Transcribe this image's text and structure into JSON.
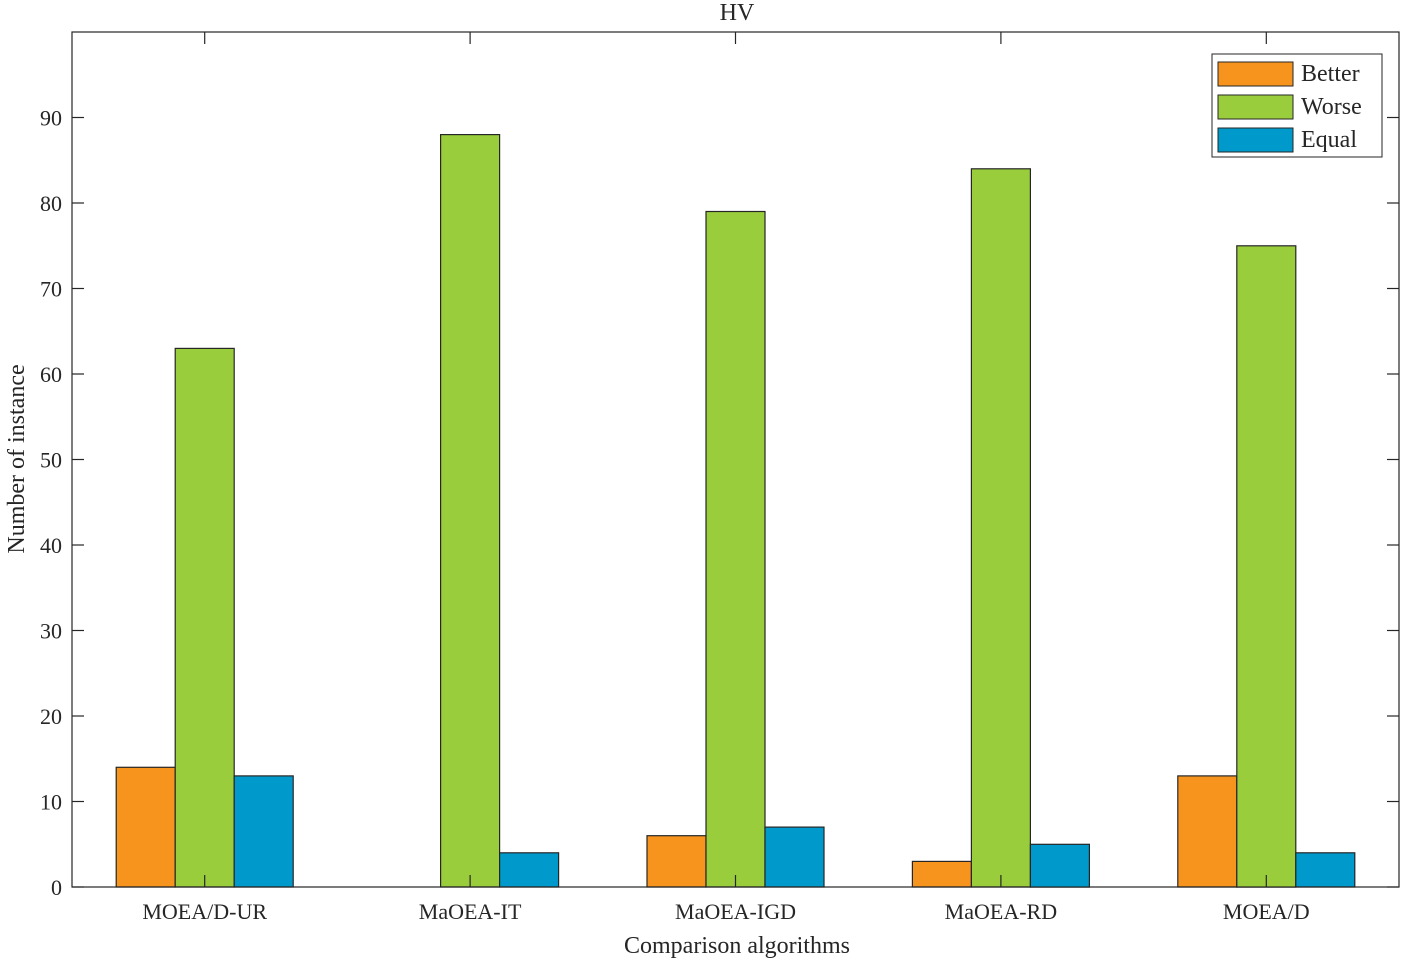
{
  "chart_data": {
    "type": "bar",
    "title": "HV",
    "xlabel": "Comparison algorithms",
    "ylabel": "Number of instance",
    "categories": [
      "MOEA/D-UR",
      "MaOEA-IT",
      "MaOEA-IGD",
      "MaOEA-RD",
      "MOEA/D"
    ],
    "series": [
      {
        "name": "Better",
        "color": "#F7941D",
        "values": [
          14,
          0,
          6,
          3,
          13
        ]
      },
      {
        "name": "Worse",
        "color": "#9ACD3C",
        "values": [
          63,
          88,
          79,
          84,
          75
        ]
      },
      {
        "name": "Equal",
        "color": "#0099CC",
        "values": [
          13,
          4,
          7,
          5,
          4
        ]
      }
    ],
    "ylim": [
      0,
      100
    ],
    "yticks": [
      0,
      10,
      20,
      30,
      40,
      50,
      60,
      70,
      80,
      90
    ],
    "legend_position": "top-right",
    "grid": false
  }
}
